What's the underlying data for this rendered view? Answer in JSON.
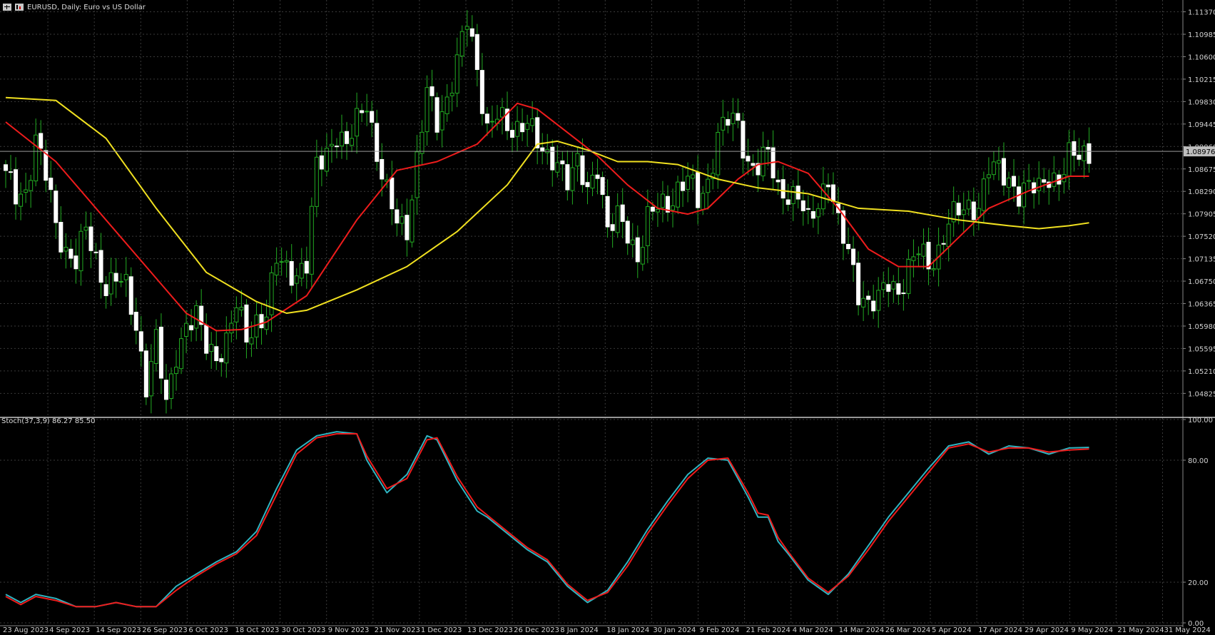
{
  "window": {
    "symbol_title": "EURUSD, Daily:",
    "description": "Euro vs US Dollar",
    "icons": [
      "chart-window-icon",
      "chart-type-icon"
    ]
  },
  "price_panel": {
    "axis_ticks": [
      "1.11370",
      "1.10985",
      "1.10600",
      "1.10215",
      "1.09830",
      "1.09445",
      "1.09060",
      "1.08675",
      "1.08290",
      "1.07905",
      "1.07520",
      "1.07135",
      "1.06750",
      "1.06365",
      "1.05980",
      "1.05595",
      "1.05210",
      "1.04825"
    ],
    "current_price_label": "1.08976",
    "current_price": 1.08976
  },
  "stoch_panel": {
    "label": "Stoch(37,3,9) 86.27 85.50",
    "axis_ticks": [
      "100.00",
      "80.00",
      "20.00",
      "0.00"
    ]
  },
  "x_axis_labels": [
    "23 Aug 2023",
    "4 Sep 2023",
    "14 Sep 2023",
    "26 Sep 2023",
    "6 Oct 2023",
    "18 Oct 2023",
    "30 Oct 2023",
    "9 Nov 2023",
    "21 Nov 2023",
    "1 Dec 2023",
    "13 Dec 2023",
    "26 Dec 2023",
    "8 Jan 2024",
    "18 Jan 2024",
    "30 Jan 2024",
    "9 Feb 2024",
    "21 Feb 2024",
    "4 Mar 2024",
    "14 Mar 2024",
    "26 Mar 2024",
    "5 Apr 2024",
    "17 Apr 2024",
    "29 Apr 2024",
    "9 May 2024",
    "21 May 2024",
    "31 May 2024"
  ],
  "colors": {
    "background": "#000000",
    "grid": "#3a3a3a",
    "bull_body": "#000000",
    "bull_outline": "#22aa22",
    "bear_body": "#ffffff",
    "wick": "#22aa22",
    "ma_fast": "#ee1c1c",
    "ma_slow": "#f0e020",
    "stoch_main": "#2fb5c2",
    "stoch_signal": "#ee1c1c",
    "axis_text": "#d0d0d0"
  },
  "chart_data": [
    {
      "type": "candlestick",
      "ylim": [
        1.0445,
        1.1145
      ],
      "close_anchors": [
        [
          0,
          1.0855
        ],
        [
          2,
          1.082
        ],
        [
          4,
          1.083
        ],
        [
          6,
          1.092
        ],
        [
          8,
          1.0855
        ],
        [
          10,
          1.077
        ],
        [
          12,
          1.073
        ],
        [
          14,
          1.071
        ],
        [
          16,
          1.076
        ],
        [
          18,
          1.071
        ],
        [
          20,
          1.067
        ],
        [
          22,
          1.068
        ],
        [
          24,
          1.066
        ],
        [
          26,
          1.06
        ],
        [
          28,
          1.05
        ],
        [
          30,
          1.057
        ],
        [
          32,
          1.046
        ],
        [
          34,
          1.0555
        ],
        [
          36,
          1.06
        ],
        [
          38,
          1.061
        ],
        [
          40,
          1.0565
        ],
        [
          42,
          1.055
        ],
        [
          44,
          1.057
        ],
        [
          46,
          1.063
        ],
        [
          48,
          1.058
        ],
        [
          50,
          1.061
        ],
        [
          52,
          1.0615
        ],
        [
          54,
          1.071
        ],
        [
          56,
          1.07
        ],
        [
          58,
          1.069
        ],
        [
          60,
          1.07
        ],
        [
          62,
          1.087
        ],
        [
          64,
          1.09
        ],
        [
          66,
          1.093
        ],
        [
          68,
          1.09
        ],
        [
          70,
          1.095
        ],
        [
          72,
          1.099
        ],
        [
          74,
          1.089
        ],
        [
          76,
          1.082
        ],
        [
          78,
          1.078
        ],
        [
          80,
          1.077
        ],
        [
          82,
          1.088
        ],
        [
          84,
          1.0995
        ],
        [
          86,
          1.095
        ],
        [
          88,
          1.099
        ],
        [
          90,
          1.105
        ],
        [
          92,
          1.112
        ],
        [
          94,
          1.104
        ],
        [
          96,
          1.094
        ],
        [
          98,
          1.096
        ],
        [
          100,
          1.093
        ],
        [
          102,
          1.094
        ],
        [
          104,
          1.096
        ],
        [
          106,
          1.0905
        ],
        [
          108,
          1.088
        ],
        [
          110,
          1.089
        ],
        [
          112,
          1.085
        ],
        [
          114,
          1.087
        ],
        [
          116,
          1.083
        ],
        [
          118,
          1.088
        ],
        [
          120,
          1.076
        ],
        [
          122,
          1.078
        ],
        [
          124,
          1.076
        ],
        [
          126,
          1.072
        ],
        [
          128,
          1.078
        ],
        [
          130,
          1.08
        ],
        [
          132,
          1.081
        ],
        [
          134,
          1.0835
        ],
        [
          136,
          1.085
        ],
        [
          138,
          1.081
        ],
        [
          140,
          1.0845
        ],
        [
          142,
          1.093
        ],
        [
          144,
          1.095
        ],
        [
          146,
          1.094
        ],
        [
          148,
          1.088
        ],
        [
          150,
          1.0875
        ],
        [
          152,
          1.089
        ],
        [
          154,
          1.083
        ],
        [
          156,
          1.083
        ],
        [
          158,
          1.082
        ],
        [
          160,
          1.077
        ],
        [
          162,
          1.081
        ],
        [
          164,
          1.086
        ],
        [
          166,
          1.077
        ],
        [
          168,
          1.072
        ],
        [
          170,
          1.066
        ],
        [
          172,
          1.064
        ],
        [
          174,
          1.064
        ],
        [
          176,
          1.067
        ],
        [
          178,
          1.066
        ],
        [
          180,
          1.07
        ],
        [
          182,
          1.0725
        ],
        [
          184,
          1.07
        ],
        [
          186,
          1.073
        ],
        [
          188,
          1.078
        ],
        [
          190,
          1.079
        ],
        [
          192,
          1.08
        ],
        [
          194,
          1.081
        ],
        [
          196,
          1.087
        ],
        [
          198,
          1.086
        ],
        [
          200,
          1.085
        ],
        [
          202,
          1.083
        ],
        [
          204,
          1.0835
        ],
        [
          206,
          1.083
        ],
        [
          208,
          1.086
        ],
        [
          210,
          1.085
        ],
        [
          212,
          1.0885
        ],
        [
          214,
          1.089
        ],
        [
          216,
          1.0898
        ]
      ],
      "moving_averages": [
        {
          "type": "line",
          "color_key": "ma_fast",
          "x": [
            0,
            10,
            20,
            30,
            36,
            42,
            47,
            52,
            60,
            70,
            78,
            86,
            94,
            102,
            106,
            112,
            118,
            124,
            130,
            136,
            140,
            146,
            150,
            154,
            160,
            166,
            172,
            178,
            184,
            190,
            196,
            204,
            212,
            216
          ],
          "y": [
            1.0948,
            1.088,
            1.078,
            1.068,
            1.062,
            1.059,
            1.0592,
            1.0605,
            1.065,
            1.078,
            1.0865,
            1.088,
            1.091,
            1.098,
            1.097,
            1.093,
            1.089,
            1.084,
            1.08,
            1.079,
            1.08,
            1.085,
            1.0875,
            1.088,
            1.086,
            1.08,
            1.073,
            1.07,
            1.07,
            1.075,
            1.08,
            1.083,
            1.0855,
            1.0855
          ]
        },
        {
          "type": "line",
          "color_key": "ma_slow",
          "x": [
            0,
            10,
            20,
            30,
            40,
            50,
            56,
            60,
            70,
            80,
            90,
            100,
            106,
            110,
            116,
            122,
            128,
            134,
            142,
            150,
            160,
            170,
            180,
            190,
            200,
            206,
            212,
            216
          ],
          "y": [
            1.099,
            1.0985,
            1.092,
            1.08,
            1.069,
            1.064,
            1.062,
            1.0625,
            1.066,
            1.07,
            1.076,
            1.084,
            1.091,
            1.0915,
            1.09,
            1.088,
            1.088,
            1.0875,
            1.085,
            1.0835,
            1.0825,
            1.08,
            1.0795,
            1.078,
            1.077,
            1.0765,
            1.077,
            1.0775
          ]
        }
      ]
    },
    {
      "type": "line",
      "title": "Stoch(37,3,9)",
      "ylim": [
        0,
        100
      ],
      "series": [
        {
          "color_key": "stoch_main",
          "x": [
            0,
            3,
            6,
            10,
            14,
            18,
            22,
            26,
            30,
            34,
            38,
            42,
            46,
            50,
            54,
            58,
            62,
            66,
            70,
            72,
            76,
            80,
            84,
            86,
            90,
            94,
            96,
            100,
            104,
            108,
            112,
            116,
            120,
            124,
            128,
            132,
            136,
            140,
            144,
            148,
            150,
            152,
            154,
            156,
            160,
            164,
            168,
            172,
            176,
            180,
            184,
            188,
            192,
            196,
            200,
            204,
            208,
            212,
            216
          ],
          "y": [
            14,
            10,
            14,
            12,
            8,
            8,
            10,
            8,
            8,
            18,
            24,
            30,
            35,
            45,
            66,
            85,
            92,
            94,
            93,
            80,
            64,
            73,
            92,
            90,
            70,
            55,
            52,
            44,
            36,
            30,
            18,
            10,
            16,
            30,
            46,
            60,
            73,
            81,
            80,
            62,
            52,
            52,
            40,
            34,
            21,
            14,
            24,
            38,
            52,
            64,
            76,
            87,
            89,
            83,
            87,
            86,
            83,
            86,
            86.27
          ]
        },
        {
          "color_key": "stoch_signal",
          "x": [
            0,
            3,
            6,
            10,
            14,
            18,
            22,
            26,
            30,
            34,
            38,
            42,
            46,
            50,
            54,
            58,
            62,
            66,
            70,
            72,
            76,
            80,
            84,
            86,
            90,
            94,
            96,
            100,
            104,
            108,
            112,
            116,
            120,
            124,
            128,
            132,
            136,
            140,
            144,
            148,
            150,
            152,
            154,
            156,
            160,
            164,
            168,
            172,
            176,
            180,
            184,
            188,
            192,
            196,
            200,
            204,
            208,
            212,
            216
          ],
          "y": [
            13,
            9,
            13,
            11,
            8,
            8,
            10,
            8,
            8,
            16,
            23,
            29,
            34,
            43,
            63,
            83,
            91,
            93,
            93,
            82,
            66,
            71,
            90,
            91,
            72,
            57,
            53,
            45,
            37,
            31,
            19,
            11,
            15,
            28,
            44,
            58,
            71,
            80,
            81,
            64,
            54,
            53,
            42,
            35,
            22,
            15,
            23,
            36,
            50,
            62,
            74,
            86,
            88,
            84,
            86,
            86,
            84,
            85,
            85.5
          ]
        }
      ]
    }
  ]
}
